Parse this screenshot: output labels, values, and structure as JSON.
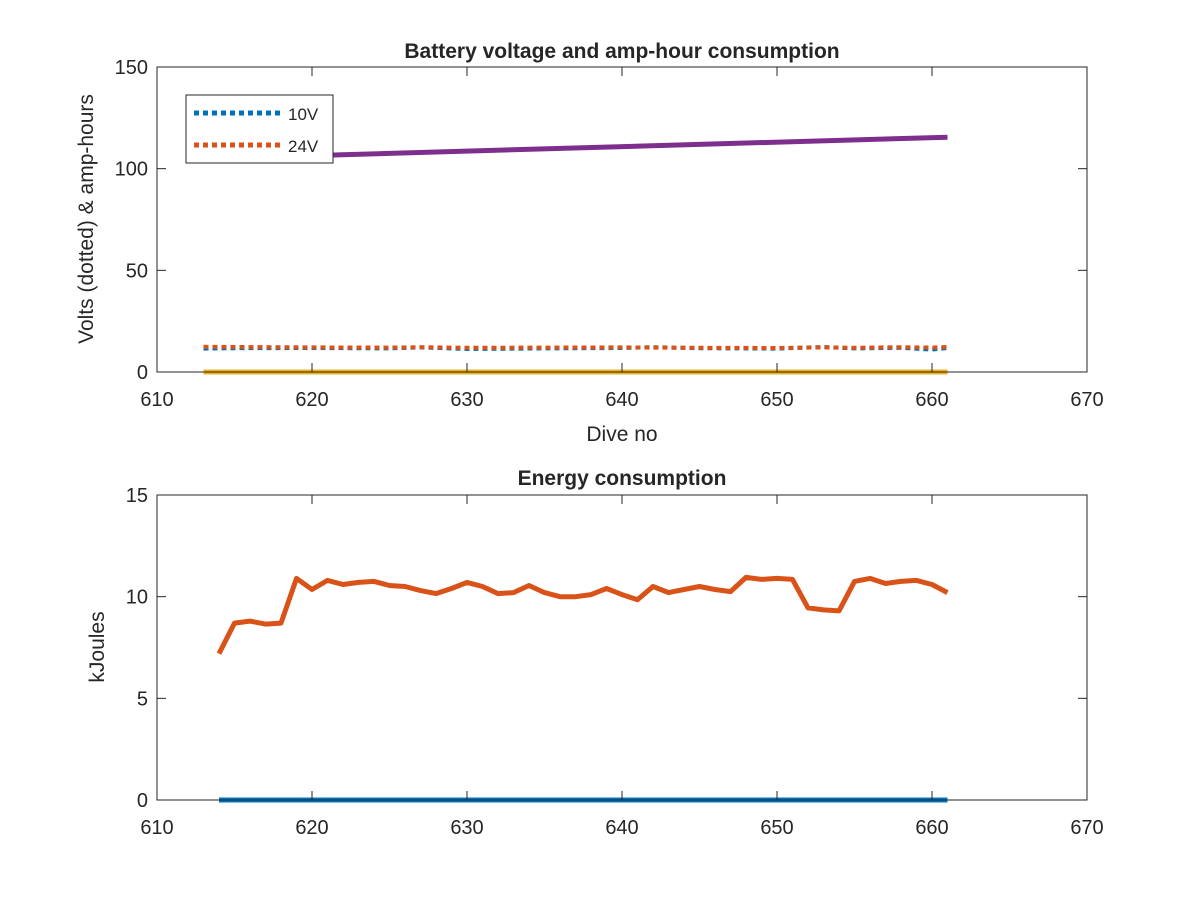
{
  "chart_data": [
    {
      "type": "line",
      "title": "Battery voltage and amp-hour consumption",
      "xlabel": "Dive no",
      "ylabel": "Volts (dotted) & amp-hours",
      "xlim": [
        610,
        670
      ],
      "ylim": [
        0,
        150
      ],
      "xticks": [
        610,
        620,
        630,
        640,
        650,
        660,
        670
      ],
      "yticks": [
        0,
        50,
        100,
        150
      ],
      "grid": false,
      "legend_position": "top-left",
      "series": [
        {
          "name": "10V",
          "style": "dotted",
          "color": "#0072BD",
          "x": [
            613,
            615,
            620,
            625,
            627,
            630,
            635,
            640,
            642,
            645,
            650,
            653,
            655,
            658,
            660,
            661
          ],
          "values": [
            11.5,
            11.7,
            11.8,
            11.6,
            12.1,
            11.3,
            11.6,
            11.8,
            12.2,
            11.7,
            11.5,
            12.3,
            11.6,
            11.9,
            11.0,
            11.8
          ]
        },
        {
          "name": "24V",
          "style": "dotted",
          "color": "#D95319",
          "x": [
            613,
            615,
            620,
            625,
            627,
            630,
            635,
            640,
            642,
            645,
            650,
            653,
            655,
            658,
            660,
            661
          ],
          "values": [
            12.4,
            12.3,
            12.1,
            12.0,
            12.2,
            11.9,
            12.0,
            12.1,
            12.0,
            11.9,
            11.8,
            12.1,
            11.9,
            12.2,
            12.0,
            12.3
          ]
        },
        {
          "style": "solid",
          "color": "#EDB120",
          "x": [
            613,
            661
          ],
          "values": [
            0,
            0
          ]
        },
        {
          "style": "solid",
          "color": "#7E2F8E",
          "x": [
            618,
            661
          ],
          "values": [
            106,
            115.5
          ]
        }
      ]
    },
    {
      "type": "line",
      "title": "Energy consumption",
      "xlabel": "",
      "ylabel": "kJoules",
      "xlim": [
        610,
        670
      ],
      "ylim": [
        0,
        15
      ],
      "xticks": [
        610,
        620,
        630,
        640,
        650,
        660,
        670
      ],
      "yticks": [
        0,
        5,
        10,
        15
      ],
      "grid": false,
      "series": [
        {
          "style": "solid",
          "color": "#0072BD",
          "x": [
            614,
            661
          ],
          "values": [
            0,
            0
          ]
        },
        {
          "style": "solid",
          "color": "#D95319",
          "x": [
            614,
            615,
            616,
            617,
            618,
            619,
            620,
            621,
            622,
            623,
            624,
            625,
            626,
            627,
            628,
            629,
            630,
            631,
            632,
            633,
            634,
            635,
            636,
            637,
            638,
            639,
            640,
            641,
            642,
            643,
            644,
            645,
            646,
            647,
            648,
            649,
            650,
            651,
            652,
            653,
            654,
            655,
            656,
            657,
            658,
            659,
            660,
            661
          ],
          "values": [
            7.2,
            8.7,
            8.8,
            8.65,
            8.7,
            10.9,
            10.35,
            10.8,
            10.6,
            10.7,
            10.75,
            10.55,
            10.5,
            10.3,
            10.15,
            10.4,
            10.7,
            10.5,
            10.15,
            10.2,
            10.55,
            10.2,
            10.0,
            10.0,
            10.1,
            10.4,
            10.1,
            9.85,
            10.5,
            10.2,
            10.35,
            10.5,
            10.35,
            10.25,
            10.95,
            10.85,
            10.9,
            10.85,
            9.45,
            9.35,
            9.3,
            10.75,
            10.9,
            10.65,
            10.75,
            10.8,
            10.6,
            10.2
          ]
        }
      ]
    }
  ]
}
